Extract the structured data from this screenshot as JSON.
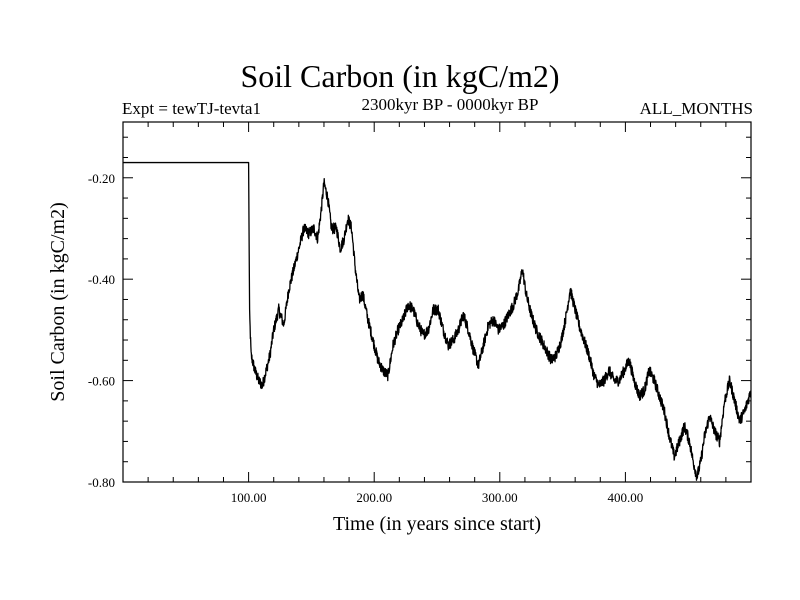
{
  "chart_data": {
    "type": "line",
    "title": "Soil Carbon (in kgC/m2)",
    "subtitle": "2300kyr BP - 0000kyr BP",
    "left_label": "Expt = tewTJ-tevta1",
    "right_label": "ALL_MONTHS",
    "xlabel": "Time (in years since start)",
    "ylabel": "Soil Carbon (in kgC/m2)",
    "xlim": [
      0,
      500
    ],
    "ylim": [
      -0.8,
      -0.09
    ],
    "xticks": [
      100,
      200,
      300,
      400
    ],
    "xtick_labels": [
      "100.00",
      "200.00",
      "300.00",
      "400.00"
    ],
    "yticks": [
      -0.8,
      -0.6,
      -0.4,
      -0.2
    ],
    "ytick_labels": [
      "-0.80",
      "-0.60",
      "-0.40",
      "-0.20"
    ],
    "series": [
      {
        "name": "Soil Carbon",
        "color": "#000000",
        "x": [
          0,
          100,
          100.8,
          102,
          105,
          108,
          111,
          114,
          117,
          120,
          124,
          128,
          132,
          136,
          140,
          144,
          148,
          152,
          155,
          158,
          160,
          163,
          166,
          170,
          173,
          176,
          179,
          182,
          185,
          188,
          191,
          195,
          199,
          203,
          207,
          211,
          215,
          219,
          223,
          227,
          231,
          235,
          239,
          243,
          247,
          251,
          255,
          259,
          263,
          267,
          271,
          275,
          279,
          283,
          287,
          291,
          295,
          299,
          303,
          307,
          311,
          315,
          318,
          321,
          325,
          329,
          333,
          337,
          341,
          345,
          349,
          353,
          356,
          359,
          363,
          367,
          371,
          375,
          379,
          383,
          387,
          391,
          395,
          399,
          403,
          407,
          411,
          415,
          419,
          423,
          427,
          431,
          435,
          439,
          443,
          447,
          451,
          454,
          457,
          460,
          463,
          467,
          471,
          475,
          479,
          483,
          487,
          491,
          495,
          500
        ],
        "values": [
          -0.17,
          -0.17,
          -0.47,
          -0.55,
          -0.58,
          -0.6,
          -0.61,
          -0.58,
          -0.55,
          -0.5,
          -0.46,
          -0.49,
          -0.42,
          -0.38,
          -0.34,
          -0.3,
          -0.31,
          -0.3,
          -0.32,
          -0.26,
          -0.21,
          -0.24,
          -0.3,
          -0.3,
          -0.34,
          -0.32,
          -0.28,
          -0.3,
          -0.38,
          -0.44,
          -0.43,
          -0.48,
          -0.52,
          -0.56,
          -0.58,
          -0.59,
          -0.53,
          -0.5,
          -0.48,
          -0.45,
          -0.46,
          -0.49,
          -0.51,
          -0.5,
          -0.46,
          -0.46,
          -0.5,
          -0.53,
          -0.52,
          -0.5,
          -0.47,
          -0.5,
          -0.54,
          -0.57,
          -0.53,
          -0.49,
          -0.48,
          -0.5,
          -0.49,
          -0.47,
          -0.45,
          -0.42,
          -0.38,
          -0.43,
          -0.47,
          -0.5,
          -0.52,
          -0.54,
          -0.56,
          -0.55,
          -0.52,
          -0.47,
          -0.42,
          -0.45,
          -0.49,
          -0.52,
          -0.55,
          -0.59,
          -0.61,
          -0.6,
          -0.58,
          -0.6,
          -0.6,
          -0.58,
          -0.56,
          -0.6,
          -0.63,
          -0.62,
          -0.58,
          -0.6,
          -0.63,
          -0.66,
          -0.71,
          -0.75,
          -0.72,
          -0.69,
          -0.72,
          -0.76,
          -0.79,
          -0.76,
          -0.71,
          -0.67,
          -0.7,
          -0.72,
          -0.64,
          -0.6,
          -0.64,
          -0.68,
          -0.66,
          -0.62
        ]
      }
    ]
  }
}
